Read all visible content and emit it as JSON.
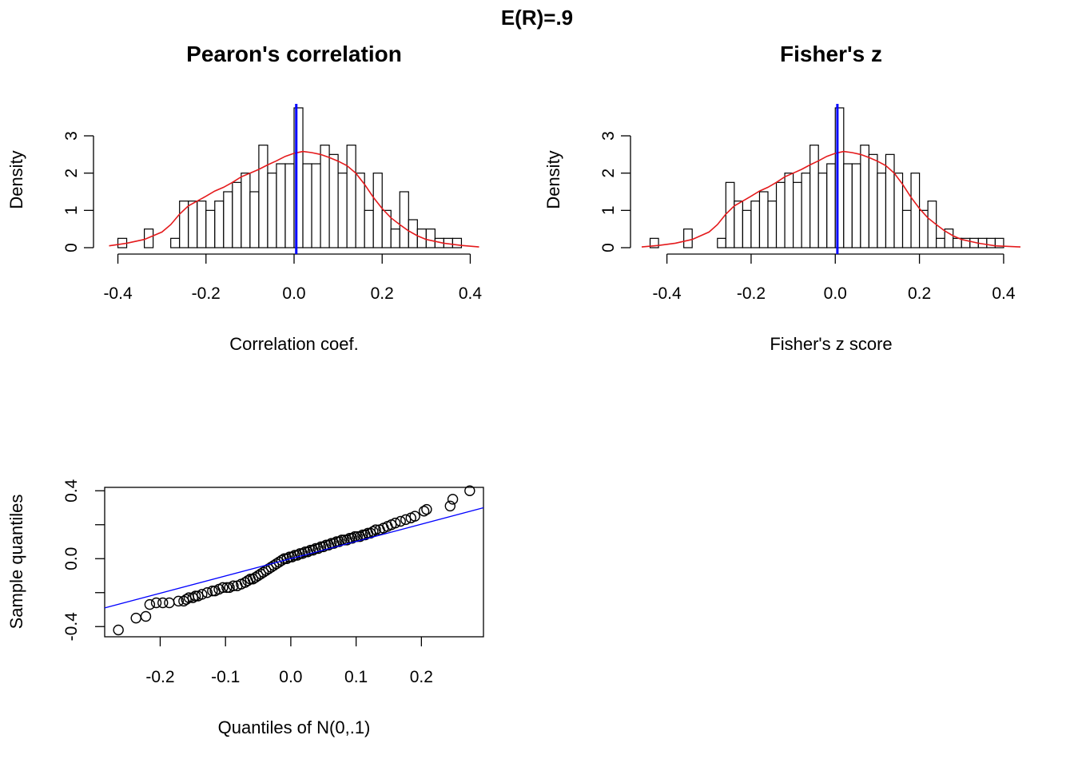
{
  "figure": {
    "title": "E(R)=.9"
  },
  "colors": {
    "bar_fill": "#ffffff",
    "stroke": "#000000",
    "density": "#e41a1c",
    "vline": "#0000ff",
    "qqline": "#0000ff"
  },
  "chart_data": [
    {
      "type": "bar",
      "title": "Pearon's correlation",
      "xlabel": "Correlation coef.",
      "ylabel": "Density",
      "xlim": [
        -0.43,
        0.43
      ],
      "ylim": [
        0,
        3.9
      ],
      "xticks": [
        -0.4,
        -0.2,
        0.0,
        0.2,
        0.4
      ],
      "xtick_labels": [
        "-0.4",
        "-0.2",
        "0.0",
        "0.2",
        "0.4"
      ],
      "yticks": [
        0,
        1,
        2,
        3
      ],
      "ytick_labels": [
        "0",
        "1",
        "2",
        "3"
      ],
      "bin_width": 0.02,
      "bin_start": -0.4,
      "values": [
        0.25,
        0,
        0,
        0.5,
        0,
        0,
        0.25,
        1.25,
        1.25,
        1.25,
        1.0,
        1.25,
        1.5,
        1.75,
        2.0,
        1.5,
        2.75,
        2.0,
        2.25,
        2.25,
        3.75,
        2.25,
        2.25,
        2.75,
        2.5,
        2.0,
        2.75,
        2.0,
        1.0,
        2.0,
        1.0,
        0.5,
        1.5,
        0.75,
        0.5,
        0.5,
        0.25,
        0.25,
        0.25
      ],
      "density_curve": {
        "x": [
          -0.42,
          -0.38,
          -0.34,
          -0.3,
          -0.28,
          -0.26,
          -0.24,
          -0.22,
          -0.2,
          -0.18,
          -0.16,
          -0.14,
          -0.12,
          -0.1,
          -0.08,
          -0.06,
          -0.04,
          -0.02,
          0.0,
          0.02,
          0.04,
          0.06,
          0.08,
          0.1,
          0.12,
          0.14,
          0.16,
          0.18,
          0.2,
          0.22,
          0.24,
          0.26,
          0.28,
          0.3,
          0.34,
          0.38,
          0.42
        ],
        "y": [
          0.05,
          0.12,
          0.22,
          0.42,
          0.62,
          0.9,
          1.12,
          1.25,
          1.38,
          1.52,
          1.62,
          1.75,
          1.9,
          2.0,
          2.1,
          2.22,
          2.33,
          2.45,
          2.53,
          2.58,
          2.55,
          2.5,
          2.42,
          2.32,
          2.2,
          2.0,
          1.7,
          1.35,
          1.05,
          0.8,
          0.62,
          0.45,
          0.32,
          0.22,
          0.12,
          0.06,
          0.02
        ]
      },
      "vline": 0.005
    },
    {
      "type": "bar",
      "title": "Fisher's z",
      "xlabel": "Fisher's z score",
      "ylabel": "Density",
      "xlim": [
        -0.46,
        0.44
      ],
      "ylim": [
        0,
        3.9
      ],
      "xticks": [
        -0.4,
        -0.2,
        0.0,
        0.2,
        0.4
      ],
      "xtick_labels": [
        "-0.4",
        "-0.2",
        "0.0",
        "0.2",
        "0.4"
      ],
      "yticks": [
        0,
        1,
        2,
        3
      ],
      "ytick_labels": [
        "0",
        "1",
        "2",
        "3"
      ],
      "bin_width": 0.02,
      "bin_start": -0.44,
      "values": [
        0.25,
        0,
        0,
        0,
        0.5,
        0,
        0,
        0,
        0.25,
        1.75,
        1.25,
        1.0,
        1.25,
        1.5,
        1.25,
        1.75,
        2.0,
        1.75,
        2.0,
        2.75,
        2.0,
        2.25,
        3.75,
        2.25,
        2.25,
        2.75,
        2.5,
        2.0,
        2.5,
        2.0,
        1.0,
        2.0,
        1.0,
        1.25,
        0.25,
        0.5,
        0.25,
        0.25,
        0.25,
        0.25,
        0.25,
        0.25
      ],
      "density_curve": {
        "x": [
          -0.46,
          -0.42,
          -0.38,
          -0.34,
          -0.3,
          -0.28,
          -0.26,
          -0.24,
          -0.22,
          -0.2,
          -0.18,
          -0.16,
          -0.14,
          -0.12,
          -0.1,
          -0.08,
          -0.06,
          -0.04,
          -0.02,
          0.0,
          0.02,
          0.04,
          0.06,
          0.08,
          0.1,
          0.12,
          0.14,
          0.16,
          0.18,
          0.2,
          0.22,
          0.24,
          0.26,
          0.28,
          0.3,
          0.34,
          0.38,
          0.44
        ],
        "y": [
          0.02,
          0.06,
          0.12,
          0.22,
          0.42,
          0.62,
          0.9,
          1.12,
          1.25,
          1.38,
          1.52,
          1.62,
          1.75,
          1.9,
          2.0,
          2.1,
          2.22,
          2.33,
          2.45,
          2.53,
          2.58,
          2.55,
          2.5,
          2.42,
          2.32,
          2.2,
          2.0,
          1.7,
          1.35,
          1.05,
          0.8,
          0.62,
          0.45,
          0.32,
          0.22,
          0.12,
          0.05,
          0.02
        ]
      },
      "vline": 0.005
    },
    {
      "type": "scatter",
      "title": "",
      "xlabel": "Quantiles of N(0,.1)",
      "ylabel": "Sample quantiles",
      "xlim": [
        -0.285,
        0.295
      ],
      "ylim": [
        -0.46,
        0.42
      ],
      "xticks": [
        -0.2,
        -0.1,
        0.0,
        0.1,
        0.2
      ],
      "xtick_labels": [
        "-0.2",
        "-0.1",
        "0.0",
        "0.1",
        "0.2"
      ],
      "yticks": [
        -0.4,
        -0.2,
        0.0,
        0.2,
        0.4
      ],
      "ytick_labels": [
        "-0.4",
        "",
        "0.0",
        "",
        "0.4"
      ],
      "points_x": [
        -0.264,
        -0.237,
        -0.222,
        -0.216,
        -0.206,
        -0.196,
        -0.186,
        -0.172,
        -0.164,
        -0.16,
        -0.156,
        -0.15,
        -0.146,
        -0.142,
        -0.136,
        -0.128,
        -0.12,
        -0.116,
        -0.11,
        -0.104,
        -0.098,
        -0.094,
        -0.088,
        -0.082,
        -0.076,
        -0.07,
        -0.066,
        -0.062,
        -0.058,
        -0.054,
        -0.05,
        -0.046,
        -0.042,
        -0.038,
        -0.034,
        -0.03,
        -0.026,
        -0.022,
        -0.018,
        -0.014,
        -0.01,
        -0.006,
        -0.002,
        0.002,
        0.006,
        0.01,
        0.014,
        0.018,
        0.022,
        0.026,
        0.03,
        0.034,
        0.038,
        0.042,
        0.046,
        0.05,
        0.054,
        0.058,
        0.062,
        0.066,
        0.07,
        0.074,
        0.078,
        0.082,
        0.086,
        0.09,
        0.094,
        0.098,
        0.102,
        0.106,
        0.11,
        0.114,
        0.118,
        0.122,
        0.126,
        0.13,
        0.136,
        0.142,
        0.148,
        0.154,
        0.16,
        0.168,
        0.176,
        0.184,
        0.19,
        0.204,
        0.208,
        0.244,
        0.248,
        0.274
      ],
      "points_y": [
        -0.42,
        -0.35,
        -0.34,
        -0.27,
        -0.26,
        -0.26,
        -0.26,
        -0.25,
        -0.25,
        -0.24,
        -0.23,
        -0.23,
        -0.22,
        -0.22,
        -0.21,
        -0.2,
        -0.19,
        -0.19,
        -0.18,
        -0.17,
        -0.17,
        -0.17,
        -0.16,
        -0.16,
        -0.15,
        -0.14,
        -0.13,
        -0.12,
        -0.12,
        -0.11,
        -0.1,
        -0.09,
        -0.08,
        -0.07,
        -0.06,
        -0.05,
        -0.04,
        -0.03,
        -0.02,
        -0.01,
        0.0,
        0.0,
        0.01,
        0.01,
        0.02,
        0.02,
        0.03,
        0.03,
        0.04,
        0.04,
        0.05,
        0.05,
        0.06,
        0.06,
        0.07,
        0.07,
        0.08,
        0.08,
        0.09,
        0.09,
        0.1,
        0.1,
        0.11,
        0.11,
        0.11,
        0.12,
        0.12,
        0.13,
        0.13,
        0.13,
        0.14,
        0.14,
        0.15,
        0.15,
        0.16,
        0.17,
        0.17,
        0.18,
        0.19,
        0.2,
        0.21,
        0.22,
        0.23,
        0.24,
        0.25,
        0.28,
        0.29,
        0.31,
        0.35,
        0.4
      ],
      "qqline": {
        "x": [
          -0.285,
          0.295
        ],
        "y": [
          -0.29,
          0.3
        ]
      }
    }
  ]
}
